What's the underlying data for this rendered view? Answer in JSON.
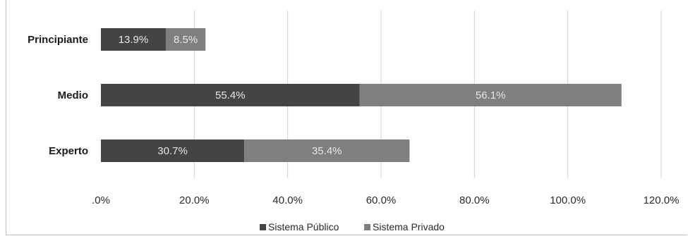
{
  "chart_data": {
    "type": "bar",
    "orientation": "horizontal",
    "stacked": true,
    "categories": [
      "Principiante",
      "Medio",
      "Experto"
    ],
    "series": [
      {
        "name": "Sistema Público",
        "values": [
          13.9,
          55.4,
          30.7
        ],
        "color": "#444444",
        "labels": [
          "13.9%",
          "55.4%",
          "30.7%"
        ]
      },
      {
        "name": "Sistema Privado",
        "values": [
          8.5,
          56.1,
          35.4
        ],
        "color": "#7f7f7f",
        "labels": [
          "8.5%",
          "56.1%",
          "35.4%"
        ]
      }
    ],
    "xlim": [
      0,
      120
    ],
    "x_ticks": [
      0,
      20,
      40,
      60,
      80,
      100,
      120
    ],
    "x_tick_labels": [
      ".0%",
      "20.0%",
      "40.0%",
      "60.0%",
      "80.0%",
      "100.0%",
      "120.0%"
    ],
    "grid": true,
    "legend_position": "bottom",
    "gridline_color": "#d0d0d0"
  }
}
